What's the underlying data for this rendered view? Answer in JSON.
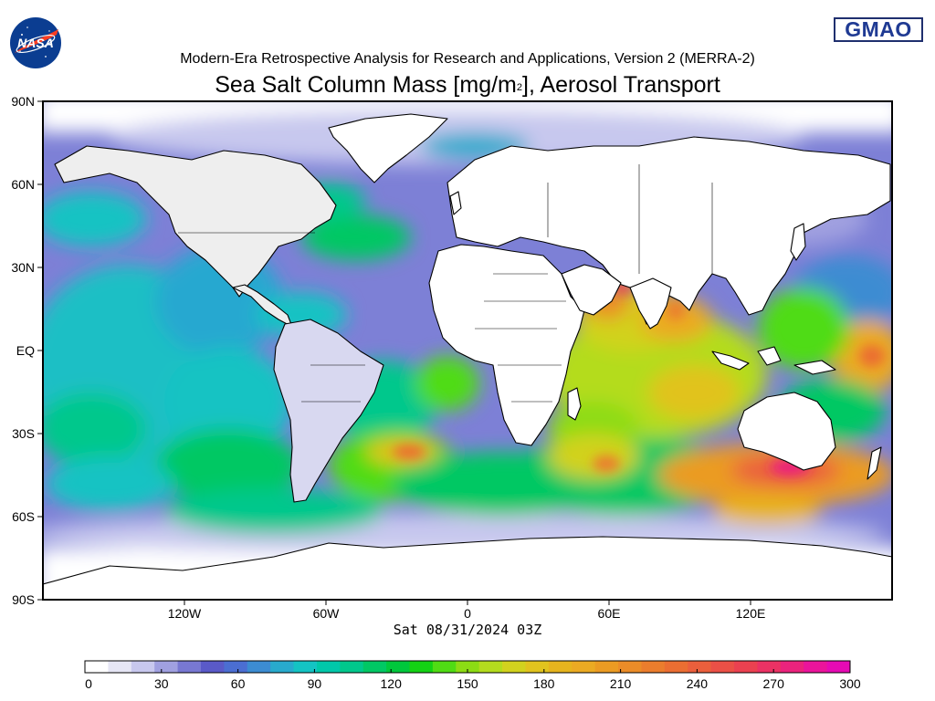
{
  "header": {
    "subtitle": "Modern-Era Retrospective Analysis for Research and Applications, Version 2 (MERRA-2)",
    "title_main": "Sea Salt Column Mass [mg/m",
    "title_sup": "2",
    "title_end": "], Aerosol Transport",
    "left_logo": "NASA",
    "right_logo": "GMAO"
  },
  "timestamp": "Sat 08/31/2024 03Z",
  "axes": {
    "lat_labels": [
      "90N",
      "60N",
      "30N",
      "EQ",
      "30S",
      "60S",
      "90S"
    ],
    "lon_labels": [
      "120W",
      "60W",
      "0",
      "60E",
      "120E"
    ]
  },
  "colorbar": {
    "ticks": [
      "0",
      "30",
      "60",
      "90",
      "120",
      "150",
      "180",
      "210",
      "240",
      "270",
      "300"
    ],
    "colors": [
      "#ffffff",
      "#e6e6f5",
      "#c8c8ee",
      "#a0a0e0",
      "#7878d2",
      "#5a5ac8",
      "#4b6ed2",
      "#3c8cd2",
      "#28aacd",
      "#14c3c3",
      "#00c8aa",
      "#00c88c",
      "#00c864",
      "#00c83c",
      "#14d214",
      "#50dc14",
      "#8cdc14",
      "#b4dc1e",
      "#d2d21e",
      "#e1c31e",
      "#e6b41e",
      "#ebaa23",
      "#eb9b23",
      "#eb8c28",
      "#eb7d2d",
      "#eb6e32",
      "#eb5f3c",
      "#eb5046",
      "#eb4150",
      "#eb3264",
      "#eb237d",
      "#eb149b",
      "#e60ab4"
    ],
    "min": 0,
    "max": 300
  }
}
